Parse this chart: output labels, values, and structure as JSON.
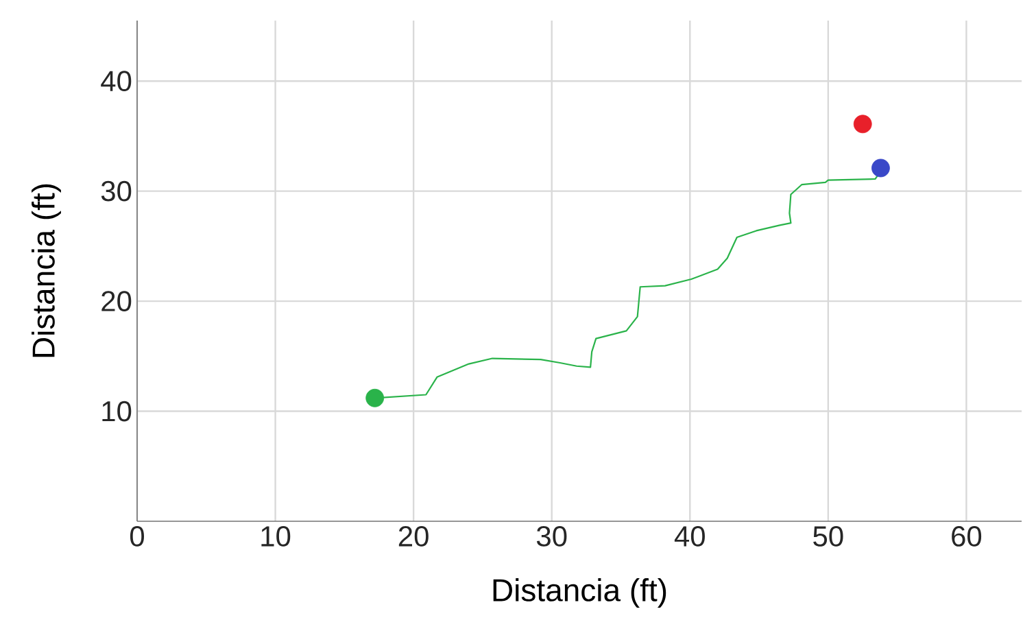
{
  "chart_data": {
    "type": "line",
    "xlabel": "Distancia (ft)",
    "ylabel": "Distancia (ft)",
    "xlim": [
      0,
      64
    ],
    "ylim": [
      0,
      45.5
    ],
    "xticks": [
      0,
      10,
      20,
      30,
      40,
      50,
      60
    ],
    "yticks": [
      10,
      20,
      30,
      40
    ],
    "grid": true,
    "series": [
      {
        "color": "#2ab34a",
        "marker": "none",
        "x": [
          17.2,
          20.9,
          21.7,
          24.0,
          25.7,
          29.2,
          30.6,
          31.8,
          32.8,
          32.9,
          33.2,
          35.4,
          36.2,
          36.4,
          38.2,
          40.1,
          42.0,
          42.7,
          43.4,
          44.8,
          46.5,
          47.3,
          47.2,
          47.3,
          48.1,
          49.8,
          50.0,
          53.4,
          53.8
        ],
        "values": [
          11.2,
          11.5,
          13.1,
          14.3,
          14.8,
          14.7,
          14.4,
          14.1,
          14.0,
          15.4,
          16.6,
          17.3,
          18.6,
          21.3,
          21.4,
          22.0,
          22.9,
          23.9,
          25.8,
          26.4,
          26.9,
          27.1,
          28.0,
          29.7,
          30.6,
          30.8,
          31.0,
          31.1,
          31.8
        ]
      },
      {
        "type": "scatter",
        "color": "#2ab34a",
        "marker": "circle",
        "x": [
          17.2
        ],
        "values": [
          11.2
        ]
      },
      {
        "type": "scatter",
        "color": "#e8202a",
        "marker": "circle",
        "x": [
          52.5
        ],
        "values": [
          36.1
        ]
      },
      {
        "type": "scatter",
        "color": "#3a48c8",
        "marker": "circle",
        "x": [
          53.8
        ],
        "values": [
          32.1
        ]
      }
    ]
  }
}
